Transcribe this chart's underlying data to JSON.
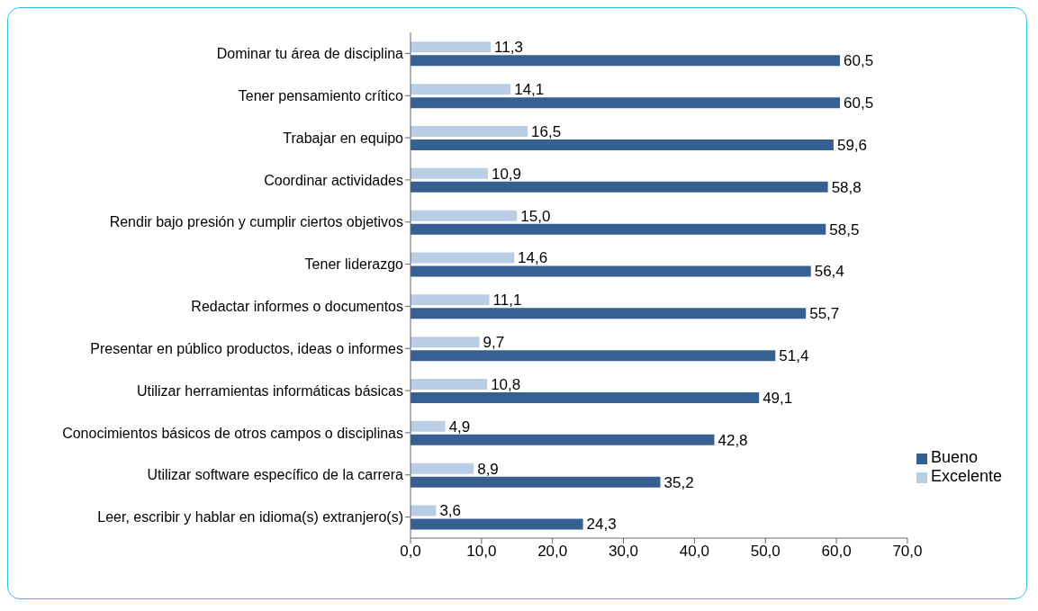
{
  "chart_data": {
    "type": "bar",
    "orientation": "horizontal",
    "categories": [
      "Dominar tu área de disciplina",
      "Tener pensamiento crítico",
      "Trabajar en equipo",
      "Coordinar actividades",
      "Rendir bajo presión y cumplir ciertos objetivos",
      "Tener liderazgo",
      "Redactar informes o documentos",
      "Presentar en público productos, ideas o informes",
      "Utilizar herramientas informáticas básicas",
      "Conocimientos básicos de otros campos o disciplinas",
      "Utilizar software específico de la carrera",
      "Leer, escribir y hablar en idioma(s) extranjero(s)"
    ],
    "series": [
      {
        "name": "Excelente",
        "color": "#b9cde5",
        "values": [
          11.3,
          14.1,
          16.5,
          10.9,
          15.0,
          14.6,
          11.1,
          9.7,
          10.8,
          4.9,
          8.9,
          3.6
        ],
        "value_labels": [
          "11,3",
          "14,1",
          "16,5",
          "10,9",
          "15,0",
          "14,6",
          "11,1",
          "9,7",
          "10,8",
          "4,9",
          "8,9",
          "3,6"
        ]
      },
      {
        "name": "Bueno",
        "color": "#376092",
        "values": [
          60.5,
          60.5,
          59.6,
          58.8,
          58.5,
          56.4,
          55.7,
          51.4,
          49.1,
          42.8,
          35.2,
          24.3
        ],
        "value_labels": [
          "60,5",
          "60,5",
          "59,6",
          "58,8",
          "58,5",
          "56,4",
          "55,7",
          "51,4",
          "49,1",
          "42,8",
          "35,2",
          "24,3"
        ]
      }
    ],
    "xlim": [
      0,
      70
    ],
    "xticks": [
      {
        "value": 0,
        "label": "0,0"
      },
      {
        "value": 10,
        "label": "10,0"
      },
      {
        "value": 20,
        "label": "20,0"
      },
      {
        "value": 30,
        "label": "30,0"
      },
      {
        "value": 40,
        "label": "40,0"
      },
      {
        "value": 50,
        "label": "50,0"
      },
      {
        "value": 60,
        "label": "60,0"
      },
      {
        "value": 70,
        "label": "70,0"
      }
    ],
    "grid": false,
    "legend": "right"
  }
}
